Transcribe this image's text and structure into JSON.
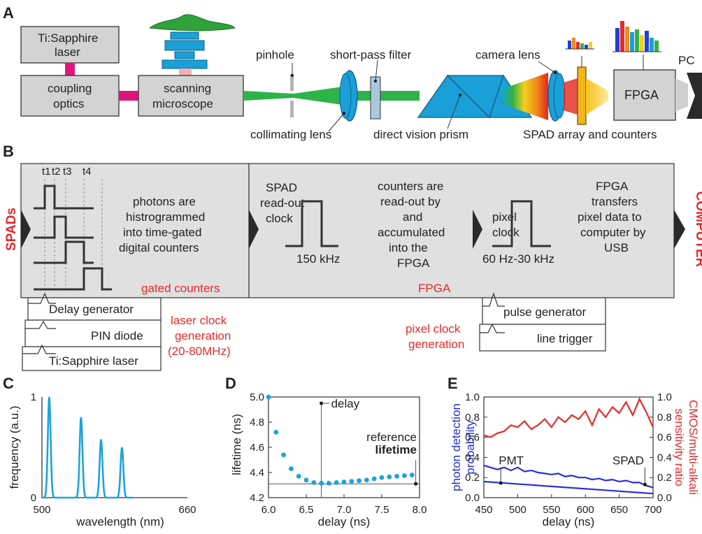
{
  "panelA": {
    "letter": "A",
    "laser": [
      "Ti:Sapphire",
      "laser"
    ],
    "coupling": [
      "coupling",
      "optics"
    ],
    "microscope": [
      "scanning",
      "microscope"
    ],
    "pinhole": "pinhole",
    "collimating_lens": "collimating lens",
    "short_pass": "short-pass filter",
    "prism": "direct vision prism",
    "camera_lens": "camera lens",
    "spad": "SPAD array and counters",
    "fpga": "FPGA",
    "pc": "PC"
  },
  "panelB": {
    "letter": "B",
    "spads": "SPADs",
    "computer": "COMPUTER",
    "times": [
      "t1",
      "t2",
      "t3",
      "t4"
    ],
    "photons_text": [
      "photons are",
      "histrogrammed",
      "into time-gated",
      "digital counters"
    ],
    "gated_counters": "gated counters",
    "spad_clock": [
      "SPAD",
      "read-out",
      "clock"
    ],
    "spad_freq": "150 kHz",
    "counters_text": [
      "counters are",
      "read-out by",
      "and",
      "accumulated",
      "into the",
      "FPGA"
    ],
    "pixel_clock": [
      "pixel",
      "clock"
    ],
    "pixel_freq": "60 Hz-30 kHz",
    "fpga_text": [
      "FPGA",
      "transfers",
      "pixel data to",
      "computer by",
      "USB"
    ],
    "fpga_label": "FPGA",
    "delay_gen": "Delay generator",
    "pin_diode": "PIN diode",
    "tisapph": "Ti:Sapphire laser",
    "laser_clock": [
      "laser clock",
      "generation",
      "(20-80MHz)"
    ],
    "pulse_gen": "pulse generator",
    "line_trigger": "line trigger",
    "pixel_clock_gen": [
      "pixel clock",
      "generation"
    ]
  },
  "chart_data": [
    {
      "panel": "C",
      "type": "line",
      "ylabel": "frequency (a.u.)",
      "xlabel": "wavelength (nm)",
      "xlim": [
        500,
        660
      ],
      "ylim": [
        0,
        1
      ],
      "xticks": [
        "500",
        "660"
      ],
      "yticks": [
        "0",
        "1"
      ],
      "color": "#1ca3dc",
      "peaks": [
        {
          "center": 508,
          "height": 1.0
        },
        {
          "center": 543,
          "height": 0.8
        },
        {
          "center": 565,
          "height": 0.58
        },
        {
          "center": 588,
          "height": 0.5
        }
      ]
    },
    {
      "panel": "D",
      "type": "scatter",
      "ylabel": "lifetime (ns)",
      "xlabel": "delay (ns)",
      "xlim": [
        6.0,
        8.0
      ],
      "ylim": [
        4.2,
        5.0
      ],
      "xticks": [
        "6.0",
        "6.5",
        "7.0",
        "7.5",
        "8.0"
      ],
      "yticks": [
        "4.2",
        "4.4",
        "4.6",
        "4.8",
        "5.0"
      ],
      "color": "#1ca3dc",
      "x": [
        6.0,
        6.1,
        6.2,
        6.3,
        6.4,
        6.5,
        6.6,
        6.7,
        6.8,
        6.9,
        7.0,
        7.1,
        7.2,
        7.3,
        7.4,
        7.5,
        7.6,
        7.7,
        7.8,
        7.9
      ],
      "y": [
        5.0,
        4.72,
        4.54,
        4.43,
        4.37,
        4.34,
        4.32,
        4.315,
        4.315,
        4.32,
        4.325,
        4.33,
        4.335,
        4.34,
        4.35,
        4.36,
        4.365,
        4.37,
        4.375,
        4.38
      ],
      "annotations": {
        "delay_label": "delay",
        "delay_x": 6.7,
        "delay_y": 4.95,
        "reference": [
          "reference",
          "lifetime"
        ],
        "reference_y": 4.31,
        "reference_x": 7.95
      }
    },
    {
      "panel": "E",
      "type": "line",
      "ylabel_left": [
        "photon detection",
        "probability"
      ],
      "ylabel_right": [
        "CMOS/multi-alkali",
        "sensitivity ratio"
      ],
      "xlabel": "delay (ns)",
      "xlim": [
        450,
        700
      ],
      "ylim_left": [
        0,
        1.0
      ],
      "ylim_right": [
        0,
        1.0
      ],
      "xticks": [
        "450",
        "500",
        "550",
        "600",
        "650",
        "700"
      ],
      "yticks": [
        "0.0",
        "0.2",
        "0.4",
        "0.6",
        "0.8",
        "1.0"
      ],
      "labels": [
        "PMT",
        "SPAD"
      ],
      "series": [
        {
          "color": "#e82a2a",
          "x": [
            450,
            460,
            470,
            480,
            490,
            500,
            510,
            520,
            530,
            540,
            550,
            560,
            570,
            580,
            590,
            600,
            610,
            620,
            630,
            640,
            650,
            660,
            670,
            680,
            690,
            700
          ],
          "y": [
            0.62,
            0.6,
            0.64,
            0.66,
            0.72,
            0.7,
            0.76,
            0.68,
            0.72,
            0.78,
            0.7,
            0.8,
            0.75,
            0.82,
            0.78,
            0.86,
            0.72,
            0.88,
            0.8,
            0.9,
            0.84,
            0.95,
            0.82,
            0.98,
            0.85,
            0.7
          ]
        },
        {
          "color": "#2a2fd8",
          "x": [
            450,
            460,
            470,
            480,
            490,
            500,
            510,
            520,
            530,
            540,
            550,
            560,
            570,
            580,
            590,
            600,
            610,
            620,
            630,
            640,
            650,
            660,
            670,
            680,
            690,
            700
          ],
          "y": [
            0.32,
            0.3,
            0.28,
            0.3,
            0.27,
            0.3,
            0.26,
            0.27,
            0.25,
            0.24,
            0.23,
            0.24,
            0.21,
            0.22,
            0.2,
            0.2,
            0.18,
            0.19,
            0.17,
            0.18,
            0.16,
            0.17,
            0.15,
            0.15,
            0.12,
            0.1
          ]
        },
        {
          "color": "#2a2fd8",
          "x": [
            450,
            700
          ],
          "y": [
            0.16,
            0.04
          ]
        }
      ]
    }
  ]
}
